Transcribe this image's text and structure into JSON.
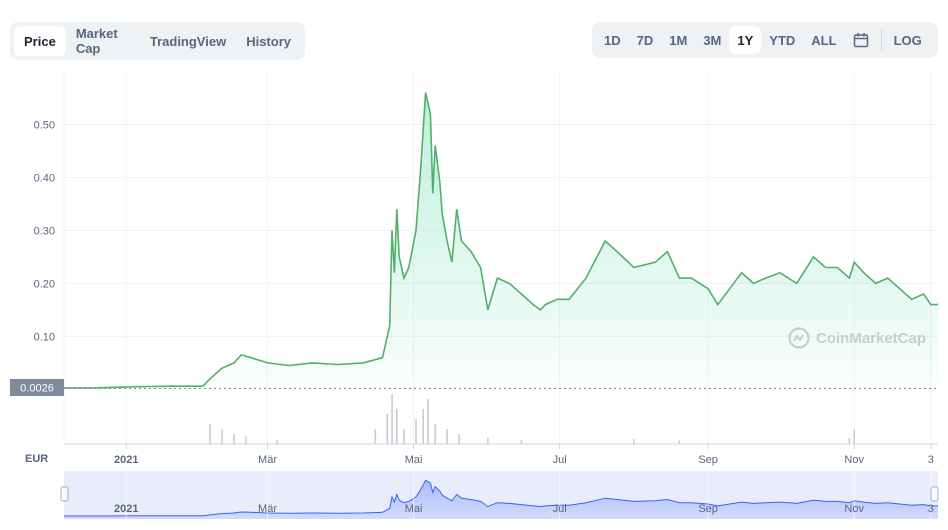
{
  "tabs": [
    "Price",
    "Market Cap",
    "TradingView",
    "History"
  ],
  "active_tab": 0,
  "ranges": [
    "1D",
    "7D",
    "1M",
    "3M",
    "1Y",
    "YTD",
    "ALL"
  ],
  "active_range": 4,
  "scale_toggle": "LOG",
  "calendar_icon": "calendar-icon",
  "currency": "EUR",
  "watermark": "CoinMarketCap",
  "current_price_label": "0.0026",
  "colors": {
    "line": "#16c784",
    "area": "#16c784",
    "navigator": "#3861fb",
    "price_tag": "#808a9d"
  },
  "chart_data": {
    "type": "line",
    "title": "",
    "xlabel": "",
    "ylabel": "",
    "x_start": "2020-12-06",
    "ylim": [
      0,
      0.6
    ],
    "y_ticks": [
      0.1,
      0.2,
      0.3,
      0.4,
      0.5
    ],
    "y_tick_labels": [
      "0.10",
      "0.20",
      "0.30",
      "0.40",
      "0.50"
    ],
    "x_ticks": [
      {
        "label": "2021",
        "date": "2021-01-01"
      },
      {
        "label": "Mär",
        "date": "2021-03-01"
      },
      {
        "label": "Mai",
        "date": "2021-05-01"
      },
      {
        "label": "Jul",
        "date": "2021-07-01"
      },
      {
        "label": "Sep",
        "date": "2021-09-01"
      },
      {
        "label": "Nov",
        "date": "2021-11-01"
      },
      {
        "label": "3",
        "date": "2021-12-03"
      }
    ],
    "grid": true,
    "series": [
      {
        "name": "",
        "x": [
          "2020-12-06",
          "2020-12-20",
          "2021-01-05",
          "2021-01-20",
          "2021-02-02",
          "2021-02-05",
          "2021-02-10",
          "2021-02-15",
          "2021-02-18",
          "2021-02-22",
          "2021-03-01",
          "2021-03-10",
          "2021-03-20",
          "2021-03-30",
          "2021-04-10",
          "2021-04-18",
          "2021-04-21",
          "2021-04-22",
          "2021-04-23",
          "2021-04-24",
          "2021-04-25",
          "2021-04-27",
          "2021-04-29",
          "2021-05-02",
          "2021-05-04",
          "2021-05-06",
          "2021-05-08",
          "2021-05-09",
          "2021-05-10",
          "2021-05-12",
          "2021-05-13",
          "2021-05-15",
          "2021-05-17",
          "2021-05-19",
          "2021-05-21",
          "2021-05-23",
          "2021-05-25",
          "2021-05-29",
          "2021-06-01",
          "2021-06-05",
          "2021-06-10",
          "2021-06-15",
          "2021-06-20",
          "2021-06-23",
          "2021-06-25",
          "2021-06-30",
          "2021-07-05",
          "2021-07-12",
          "2021-07-20",
          "2021-07-25",
          "2021-08-01",
          "2021-08-10",
          "2021-08-15",
          "2021-08-20",
          "2021-08-25",
          "2021-09-01",
          "2021-09-05",
          "2021-09-10",
          "2021-09-15",
          "2021-09-20",
          "2021-09-25",
          "2021-10-01",
          "2021-10-08",
          "2021-10-15",
          "2021-10-20",
          "2021-10-25",
          "2021-10-30",
          "2021-11-01",
          "2021-11-05",
          "2021-11-10",
          "2021-11-15",
          "2021-11-20",
          "2021-11-25",
          "2021-11-30",
          "2021-12-03",
          "2021-12-06"
        ],
        "values": [
          0.0026,
          0.003,
          0.005,
          0.006,
          0.006,
          0.02,
          0.04,
          0.05,
          0.065,
          0.06,
          0.05,
          0.045,
          0.05,
          0.047,
          0.05,
          0.06,
          0.12,
          0.3,
          0.22,
          0.34,
          0.25,
          0.21,
          0.23,
          0.3,
          0.42,
          0.56,
          0.52,
          0.37,
          0.46,
          0.39,
          0.33,
          0.28,
          0.24,
          0.34,
          0.28,
          0.27,
          0.26,
          0.23,
          0.15,
          0.21,
          0.2,
          0.18,
          0.16,
          0.15,
          0.16,
          0.17,
          0.17,
          0.21,
          0.28,
          0.26,
          0.23,
          0.24,
          0.26,
          0.21,
          0.21,
          0.19,
          0.16,
          0.19,
          0.22,
          0.2,
          0.21,
          0.22,
          0.2,
          0.25,
          0.23,
          0.23,
          0.21,
          0.24,
          0.22,
          0.2,
          0.21,
          0.19,
          0.17,
          0.18,
          0.16,
          0.16
        ]
      }
    ],
    "volume": {
      "x": [
        "2021-02-05",
        "2021-02-10",
        "2021-02-15",
        "2021-02-20",
        "2021-03-05",
        "2021-04-15",
        "2021-04-20",
        "2021-04-22",
        "2021-04-24",
        "2021-04-27",
        "2021-05-02",
        "2021-05-05",
        "2021-05-07",
        "2021-05-10",
        "2021-05-15",
        "2021-05-20",
        "2021-06-01",
        "2021-06-15",
        "2021-08-01",
        "2021-08-20",
        "2021-10-30",
        "2021-11-01"
      ],
      "values": [
        0.4,
        0.3,
        0.2,
        0.15,
        0.08,
        0.3,
        0.6,
        1.0,
        0.7,
        0.3,
        0.5,
        0.7,
        0.9,
        0.4,
        0.3,
        0.2,
        0.12,
        0.08,
        0.1,
        0.07,
        0.12,
        0.3
      ]
    }
  }
}
